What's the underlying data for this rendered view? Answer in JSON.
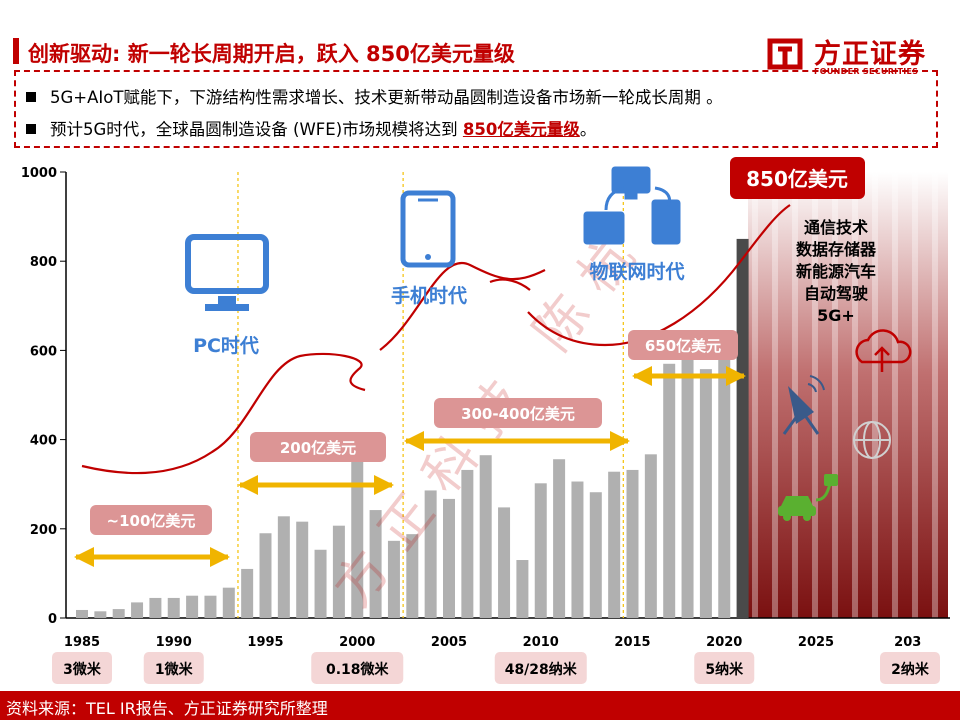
{
  "header": {
    "title": "创新驱动: 新一轮长周期开启，跃入 850亿美元量级"
  },
  "logo": {
    "name": "方正证券",
    "subtitle": "FOUNDER SECURITIES"
  },
  "bullets": {
    "line1": "5G+AIoT赋能下，下游结构性需求增长、技术更新带动晶圆制造设备市场新一轮成长周期 。",
    "line2_pre": "预计5G时代，全球晶圆制造设备 (WFE)市场规模将达到 ",
    "line2_hl": "850亿美元量级",
    "line2_post": "。"
  },
  "watermark": "方正科技 陈杭",
  "chart_data": {
    "type": "bar",
    "title": "",
    "xlabel": "",
    "ylabel": "",
    "ylim": [
      0,
      1000
    ],
    "yticks": [
      0,
      200,
      400,
      600,
      800,
      1000
    ],
    "xticks": [
      "1985",
      "1990",
      "1995",
      "2000",
      "2005",
      "2010",
      "2015",
      "2020",
      "2025",
      "203"
    ],
    "x": [
      1985,
      1986,
      1987,
      1988,
      1989,
      1990,
      1991,
      1992,
      1993,
      1994,
      1995,
      1996,
      1997,
      1998,
      1999,
      2000,
      2001,
      2002,
      2003,
      2004,
      2005,
      2006,
      2007,
      2008,
      2009,
      2010,
      2011,
      2012,
      2013,
      2014,
      2015,
      2016,
      2017,
      2018,
      2019,
      2020,
      2021
    ],
    "values": [
      18,
      15,
      20,
      35,
      45,
      45,
      50,
      50,
      68,
      110,
      190,
      228,
      216,
      153,
      207,
      358,
      242,
      173,
      188,
      286,
      267,
      332,
      365,
      248,
      130,
      302,
      356,
      306,
      282,
      328,
      332,
      367,
      570,
      625,
      558,
      600,
      850
    ],
    "highlight_index": 36,
    "colors": {
      "bar": "#b0b0b0",
      "highlight": "#4a4a4a",
      "accent": "#c00000",
      "arrow": "#f0b400",
      "label_bg": "#dc9595",
      "era_line": "#f5c518"
    },
    "eras": [
      {
        "label": "PC时代",
        "icon": "monitor-icon"
      },
      {
        "label": "手机时代",
        "icon": "smartphone-icon"
      },
      {
        "label": "物联网时代",
        "icon": "iot-network-icon"
      }
    ],
    "market_labels": [
      "~100亿美元",
      "200亿美元",
      "300-400亿美元",
      "650亿美元"
    ],
    "target_label": "850亿美元",
    "drivers": [
      "通信技术",
      "数据存储器",
      "新能源汽车",
      "自动驾驶",
      "5G+"
    ],
    "nodes": [
      "3微米",
      "1微米",
      "0.18微米",
      "48/28纳米",
      "5纳米",
      "2纳米"
    ]
  },
  "footer": {
    "source": "资料来源：TEL IR报告、方正证券研究所整理"
  }
}
